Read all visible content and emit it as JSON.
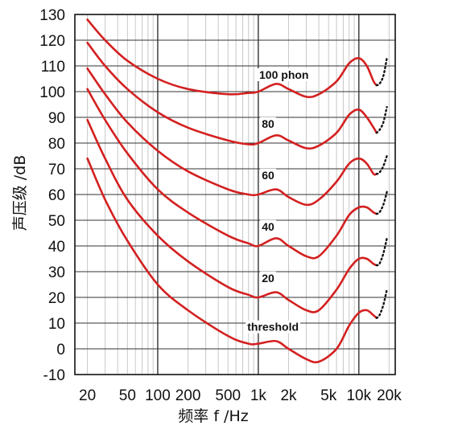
{
  "chart_data": {
    "type": "line",
    "title": "",
    "xlabel": "频率 f /Hz",
    "ylabel": "声压级 /dB",
    "x_scale": "log",
    "xlim": [
      15,
      23000
    ],
    "ylim": [
      -10,
      130
    ],
    "x_ticks": [
      {
        "value": 20,
        "label": "20"
      },
      {
        "value": 50,
        "label": "50"
      },
      {
        "value": 100,
        "label": "100"
      },
      {
        "value": 200,
        "label": "200"
      },
      {
        "value": 500,
        "label": "500"
      },
      {
        "value": 1000,
        "label": "1k"
      },
      {
        "value": 2000,
        "label": "2k"
      },
      {
        "value": 5000,
        "label": "5k"
      },
      {
        "value": 10000,
        "label": "10k"
      },
      {
        "value": 20000,
        "label": "20k"
      }
    ],
    "y_ticks": [
      130,
      120,
      110,
      100,
      90,
      80,
      70,
      60,
      50,
      40,
      30,
      20,
      10,
      0,
      -10
    ],
    "grid": true,
    "line_color": "#d42020",
    "dotted_color": "#111111",
    "series": [
      {
        "name": "100 phon",
        "points": [
          [
            20,
            128
          ],
          [
            30,
            120
          ],
          [
            50,
            112
          ],
          [
            100,
            105
          ],
          [
            200,
            101
          ],
          [
            500,
            99
          ],
          [
            800,
            99.5
          ],
          [
            1000,
            100
          ],
          [
            1500,
            103
          ],
          [
            2000,
            101
          ],
          [
            3000,
            98
          ],
          [
            4000,
            99
          ],
          [
            6000,
            104
          ],
          [
            8000,
            111
          ],
          [
            10000,
            113
          ],
          [
            12000,
            110
          ],
          [
            14000,
            104
          ],
          [
            15000,
            102.5
          ]
        ],
        "dotted": [
          [
            15000,
            102.5
          ],
          [
            16000,
            103
          ],
          [
            17500,
            106
          ],
          [
            19000,
            113
          ]
        ]
      },
      {
        "name": "80",
        "points": [
          [
            20,
            119
          ],
          [
            30,
            110
          ],
          [
            50,
            101
          ],
          [
            100,
            92
          ],
          [
            200,
            86
          ],
          [
            500,
            81
          ],
          [
            800,
            79.5
          ],
          [
            1000,
            80
          ],
          [
            1500,
            83
          ],
          [
            2000,
            81
          ],
          [
            3000,
            78
          ],
          [
            4000,
            79
          ],
          [
            6000,
            84
          ],
          [
            8000,
            91
          ],
          [
            10000,
            93
          ],
          [
            12000,
            90
          ],
          [
            14000,
            86
          ],
          [
            15000,
            84
          ]
        ],
        "dotted": [
          [
            15000,
            84
          ],
          [
            16000,
            85
          ],
          [
            17500,
            88
          ],
          [
            19000,
            94
          ]
        ]
      },
      {
        "name": "60",
        "points": [
          [
            20,
            109
          ],
          [
            30,
            99
          ],
          [
            50,
            88
          ],
          [
            100,
            77
          ],
          [
            200,
            69
          ],
          [
            500,
            62
          ],
          [
            800,
            60
          ],
          [
            1000,
            60
          ],
          [
            1500,
            62
          ],
          [
            2000,
            59
          ],
          [
            3000,
            56
          ],
          [
            4000,
            58
          ],
          [
            6000,
            65
          ],
          [
            8000,
            72
          ],
          [
            10000,
            74
          ],
          [
            12000,
            72
          ],
          [
            14000,
            68
          ],
          [
            15000,
            68
          ]
        ],
        "dotted": [
          [
            15000,
            68
          ],
          [
            16000,
            68.5
          ],
          [
            17500,
            71
          ],
          [
            19000,
            75
          ]
        ]
      },
      {
        "name": "40",
        "points": [
          [
            20,
            101
          ],
          [
            30,
            89
          ],
          [
            50,
            76
          ],
          [
            100,
            62
          ],
          [
            200,
            53
          ],
          [
            500,
            44
          ],
          [
            800,
            41
          ],
          [
            1000,
            40
          ],
          [
            1500,
            43
          ],
          [
            2000,
            40
          ],
          [
            3000,
            36
          ],
          [
            4000,
            36
          ],
          [
            6000,
            44
          ],
          [
            8000,
            52
          ],
          [
            10000,
            55
          ],
          [
            12000,
            55
          ],
          [
            14000,
            53
          ],
          [
            15000,
            52.5
          ]
        ],
        "dotted": [
          [
            15000,
            52.5
          ],
          [
            16000,
            53
          ],
          [
            17500,
            56
          ],
          [
            19000,
            61
          ]
        ]
      },
      {
        "name": "20",
        "points": [
          [
            20,
            89
          ],
          [
            30,
            74
          ],
          [
            50,
            58
          ],
          [
            100,
            44
          ],
          [
            200,
            34
          ],
          [
            500,
            24
          ],
          [
            800,
            21
          ],
          [
            1000,
            20
          ],
          [
            1500,
            22
          ],
          [
            2000,
            19
          ],
          [
            3000,
            15
          ],
          [
            4000,
            15
          ],
          [
            6000,
            23
          ],
          [
            8000,
            31
          ],
          [
            10000,
            35
          ],
          [
            12000,
            35
          ],
          [
            14000,
            33
          ],
          [
            15000,
            32.5
          ]
        ],
        "dotted": [
          [
            15000,
            32.5
          ],
          [
            16000,
            33
          ],
          [
            17500,
            37
          ],
          [
            19000,
            43
          ]
        ]
      },
      {
        "name": "threshold",
        "points": [
          [
            20,
            74
          ],
          [
            30,
            58
          ],
          [
            50,
            42
          ],
          [
            100,
            25
          ],
          [
            200,
            15
          ],
          [
            500,
            5
          ],
          [
            800,
            2
          ],
          [
            1000,
            2
          ],
          [
            1500,
            3
          ],
          [
            2000,
            0
          ],
          [
            3000,
            -4
          ],
          [
            4000,
            -5
          ],
          [
            6000,
            0
          ],
          [
            8000,
            9
          ],
          [
            10000,
            14
          ],
          [
            12000,
            15
          ],
          [
            14000,
            13
          ],
          [
            15000,
            12
          ]
        ],
        "dotted": [
          [
            15000,
            12
          ],
          [
            16000,
            13
          ],
          [
            17500,
            17
          ],
          [
            19000,
            23
          ]
        ]
      }
    ],
    "curve_labels": [
      {
        "text": "100 phon",
        "x": 1800,
        "y": 105
      },
      {
        "text": "80",
        "x": 1250,
        "y": 86
      },
      {
        "text": "60",
        "x": 1250,
        "y": 66
      },
      {
        "text": "40",
        "x": 1250,
        "y": 46
      },
      {
        "text": "20",
        "x": 1250,
        "y": 26
      },
      {
        "text": "threshold",
        "x": 1400,
        "y": 7
      }
    ]
  }
}
